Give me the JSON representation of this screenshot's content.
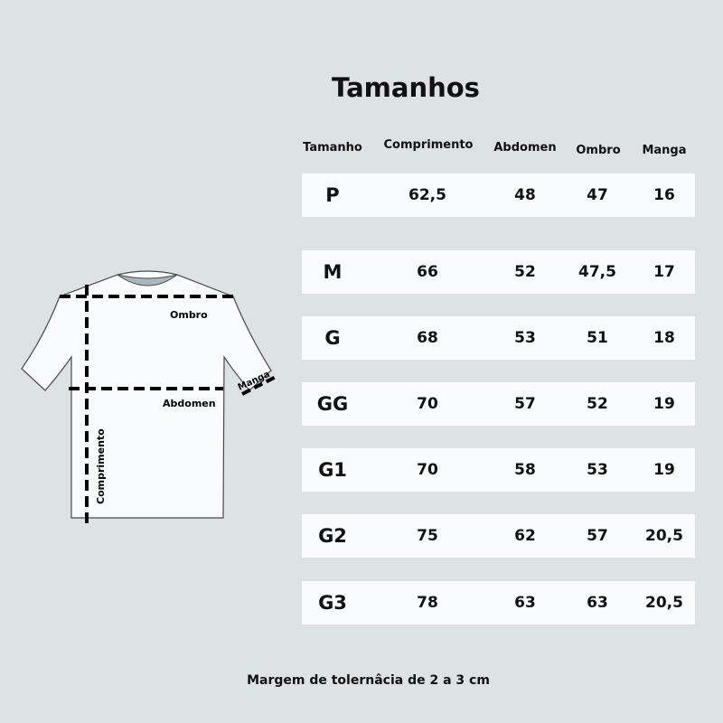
{
  "title": "Tamanhos",
  "headers": [
    "Tamanho",
    "Comprimento",
    "Abdomen",
    "Ombro",
    "Manga"
  ],
  "rows": [
    [
      "P",
      "62,5",
      "48",
      "47",
      "16"
    ],
    [
      "M",
      "66",
      "52",
      "47,5",
      "17"
    ],
    [
      "G",
      "68",
      "53",
      "51",
      "18"
    ],
    [
      "GG",
      "70",
      "57",
      "52",
      "19"
    ],
    [
      "G1",
      "70",
      "58",
      "53",
      "19"
    ],
    [
      "G2",
      "75",
      "62",
      "57",
      "20,5"
    ],
    [
      "G3",
      "78",
      "63",
      "63",
      "20,5"
    ]
  ],
  "diagram": {
    "ombro": "Ombro",
    "abdomen": "Abdomen",
    "comprimento": "Comprimento",
    "manga": "Manga"
  },
  "footer": "Margem de tolernâcia de 2 a 3 cm"
}
